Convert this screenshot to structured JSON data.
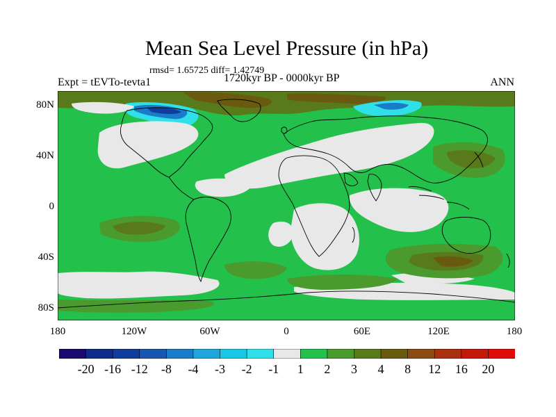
{
  "title": "Mean Sea Level Pressure (in hPa)",
  "stats": "rmsd= 1.65725 diff= 1.42749",
  "experiment": "Expt = tEVTo-tevta1",
  "period": "1720kyr BP - 0000kyr BP",
  "season": "ANN",
  "lat_labels": [
    "80N",
    "40N",
    "0",
    "40S",
    "80S"
  ],
  "lon_labels": [
    "180",
    "120W",
    "60W",
    "0",
    "60E",
    "120E",
    "180"
  ],
  "colorbar": {
    "labels": [
      "-20",
      "-16",
      "-12",
      "-8",
      "-4",
      "-3",
      "-2",
      "-1",
      "1",
      "2",
      "3",
      "4",
      "8",
      "12",
      "16",
      "20"
    ],
    "colors": [
      "#1a0a6e",
      "#102a8a",
      "#103c9c",
      "#1856b0",
      "#1a7cc8",
      "#1ea6dc",
      "#18c6e6",
      "#30e0e8",
      "#e8e8e8",
      "#24c04c",
      "#4a9a2e",
      "#587a1a",
      "#6a5a10",
      "#8a4a12",
      "#a8300e",
      "#c4180a",
      "#e00a08"
    ]
  },
  "map_colors": {
    "land_line": "#000000",
    "band_1_2": "#24c04c",
    "band_2_3": "#4a9a2e",
    "band_3_4": "#587a1a",
    "band_4_8": "#6a5a10",
    "band_neutral": "#e8e8e8",
    "band_neg_low": "#30e0e8",
    "band_neg_mid": "#1a7cc8",
    "band_neg_high": "#103c9c"
  }
}
